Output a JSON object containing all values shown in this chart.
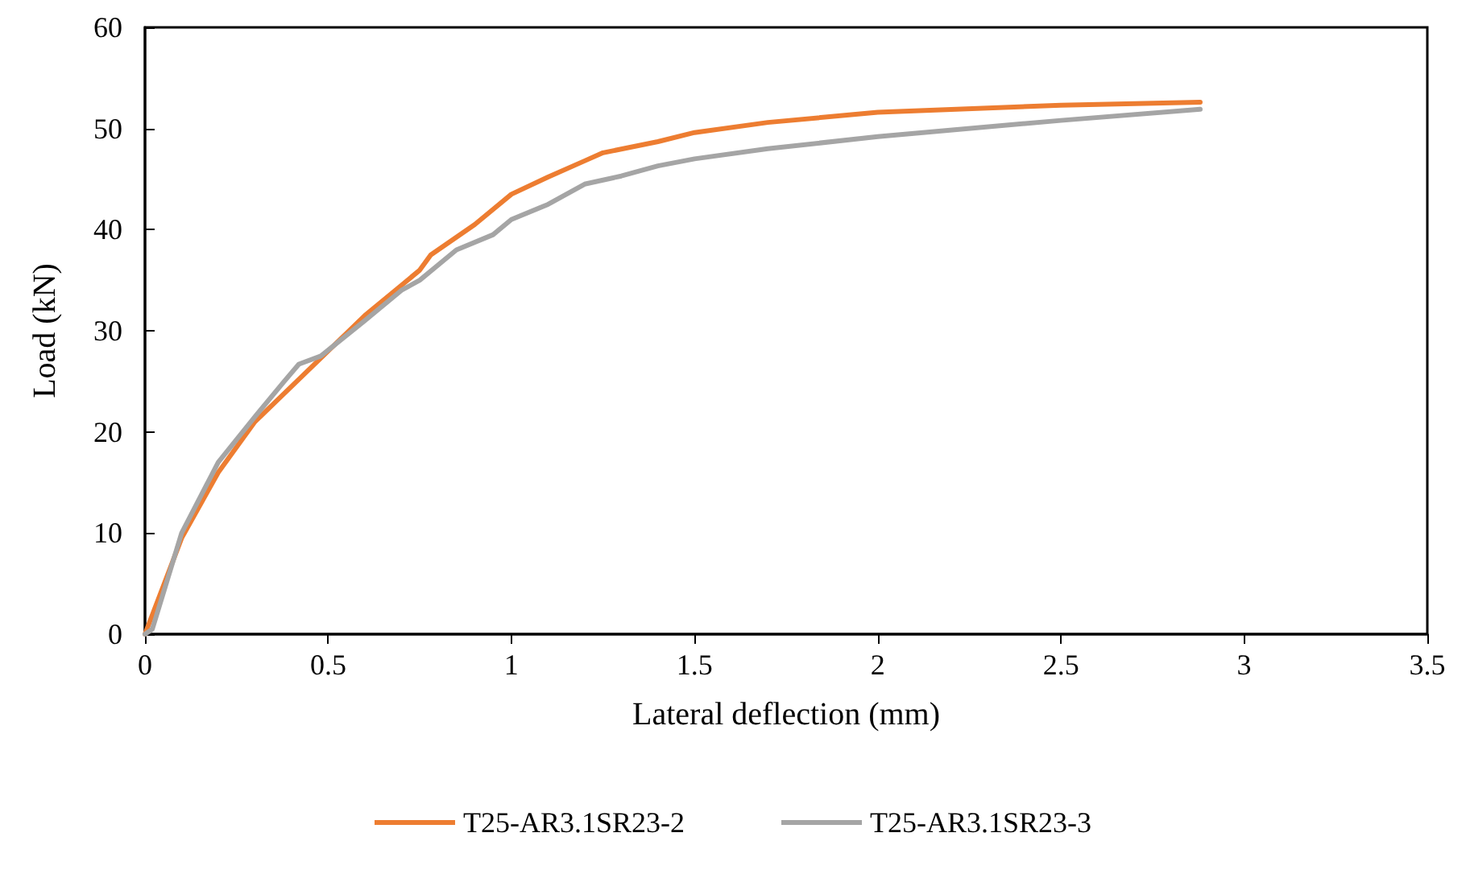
{
  "chart_data": {
    "type": "line",
    "xlabel": "Lateral deflection (mm)",
    "ylabel": "Load (kN)",
    "xlim": [
      0,
      3.5
    ],
    "xticks": [
      0,
      0.5,
      1,
      1.5,
      2,
      2.5,
      3,
      3.5
    ],
    "ylim": [
      0,
      60
    ],
    "yticks": [
      0,
      10,
      20,
      30,
      40,
      50,
      60
    ],
    "grid": false,
    "legend": "bottom",
    "marker": "none",
    "line_style": "solid",
    "series": [
      {
        "name": "T25-AR3.1SR23-2",
        "color": "#ed7d31",
        "x": [
          0,
          0.1,
          0.2,
          0.3,
          0.4,
          0.5,
          0.6,
          0.7,
          0.75,
          0.78,
          0.9,
          1.0,
          1.1,
          1.2,
          1.25,
          1.4,
          1.5,
          1.7,
          2.0,
          2.5,
          2.88
        ],
        "values": [
          0,
          9.5,
          16,
          21,
          24.5,
          28,
          31.5,
          34.5,
          36,
          37.5,
          40.5,
          43.5,
          45.2,
          46.8,
          47.6,
          48.7,
          49.6,
          50.6,
          51.6,
          52.3,
          52.6
        ]
      },
      {
        "name": "T25-AR3.1SR23-3",
        "color": "#a5a5a5",
        "x": [
          0,
          0.02,
          0.1,
          0.2,
          0.3,
          0.38,
          0.42,
          0.48,
          0.6,
          0.7,
          0.75,
          0.85,
          0.95,
          1.0,
          1.1,
          1.2,
          1.3,
          1.4,
          1.5,
          1.7,
          2.0,
          2.5,
          2.88
        ],
        "values": [
          0,
          0.5,
          10,
          17,
          21.5,
          25,
          26.7,
          27.5,
          31,
          34,
          35,
          38,
          39.5,
          41,
          42.5,
          44.5,
          45.3,
          46.3,
          47,
          48,
          49.2,
          50.8,
          51.9
        ]
      }
    ]
  }
}
